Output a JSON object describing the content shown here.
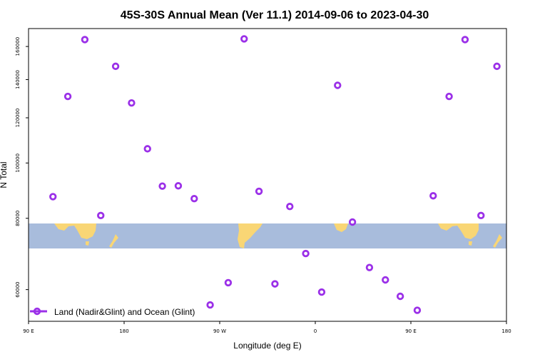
{
  "chart_data": {
    "type": "scatter",
    "title": "45S-30S Annual Mean (Ver 11.1)   2014-09-06 to 2023-04-30",
    "xlabel": "Longitude (deg E)",
    "ylabel": "N Total",
    "x_ticks": [
      {
        "value": 90,
        "label": "90 E"
      },
      {
        "value": 180,
        "label": "180"
      },
      {
        "value": 270,
        "label": "90 W"
      },
      {
        "value": 360,
        "label": "0"
      },
      {
        "value": 450,
        "label": "90 E"
      },
      {
        "value": 540,
        "label": "180"
      }
    ],
    "y_ticks": [
      {
        "value": 60000,
        "label": "60000"
      },
      {
        "value": 80000,
        "label": "80000"
      },
      {
        "value": 100000,
        "label": "100000"
      },
      {
        "value": 120000,
        "label": "120000"
      },
      {
        "value": 140000,
        "label": "140000"
      },
      {
        "value": 160000,
        "label": "160000"
      }
    ],
    "xlim": [
      90,
      540
    ],
    "ylim_log": [
      52800,
      172000
    ],
    "y_scale": "log",
    "series": [
      {
        "name": "Land (Nadir&Glint) and Ocean (Glint)",
        "color": "#9b30e8",
        "marker": "open-circle",
        "x": [
          113,
          127,
          143,
          158,
          172,
          187,
          202,
          216,
          231,
          246,
          261,
          278,
          293,
          307,
          322,
          336,
          351,
          366,
          381,
          395,
          411,
          426,
          440,
          456,
          471,
          486,
          501,
          516,
          531
        ],
        "y": [
          87300,
          130800,
          164500,
          80900,
          147700,
          127400,
          105900,
          91100,
          91200,
          86600,
          56400,
          61700,
          165000,
          89200,
          61400,
          83900,
          69400,
          59400,
          136800,
          78800,
          65600,
          62400,
          58400,
          55200,
          87600,
          130800,
          164500,
          80900,
          147700
        ]
      }
    ],
    "legend": {
      "position": "bottom-left"
    },
    "background_map": {
      "band_y_range": [
        73900,
        79300
      ],
      "ocean_color": "#a8bcdc",
      "land_color": "#f9d675"
    }
  }
}
